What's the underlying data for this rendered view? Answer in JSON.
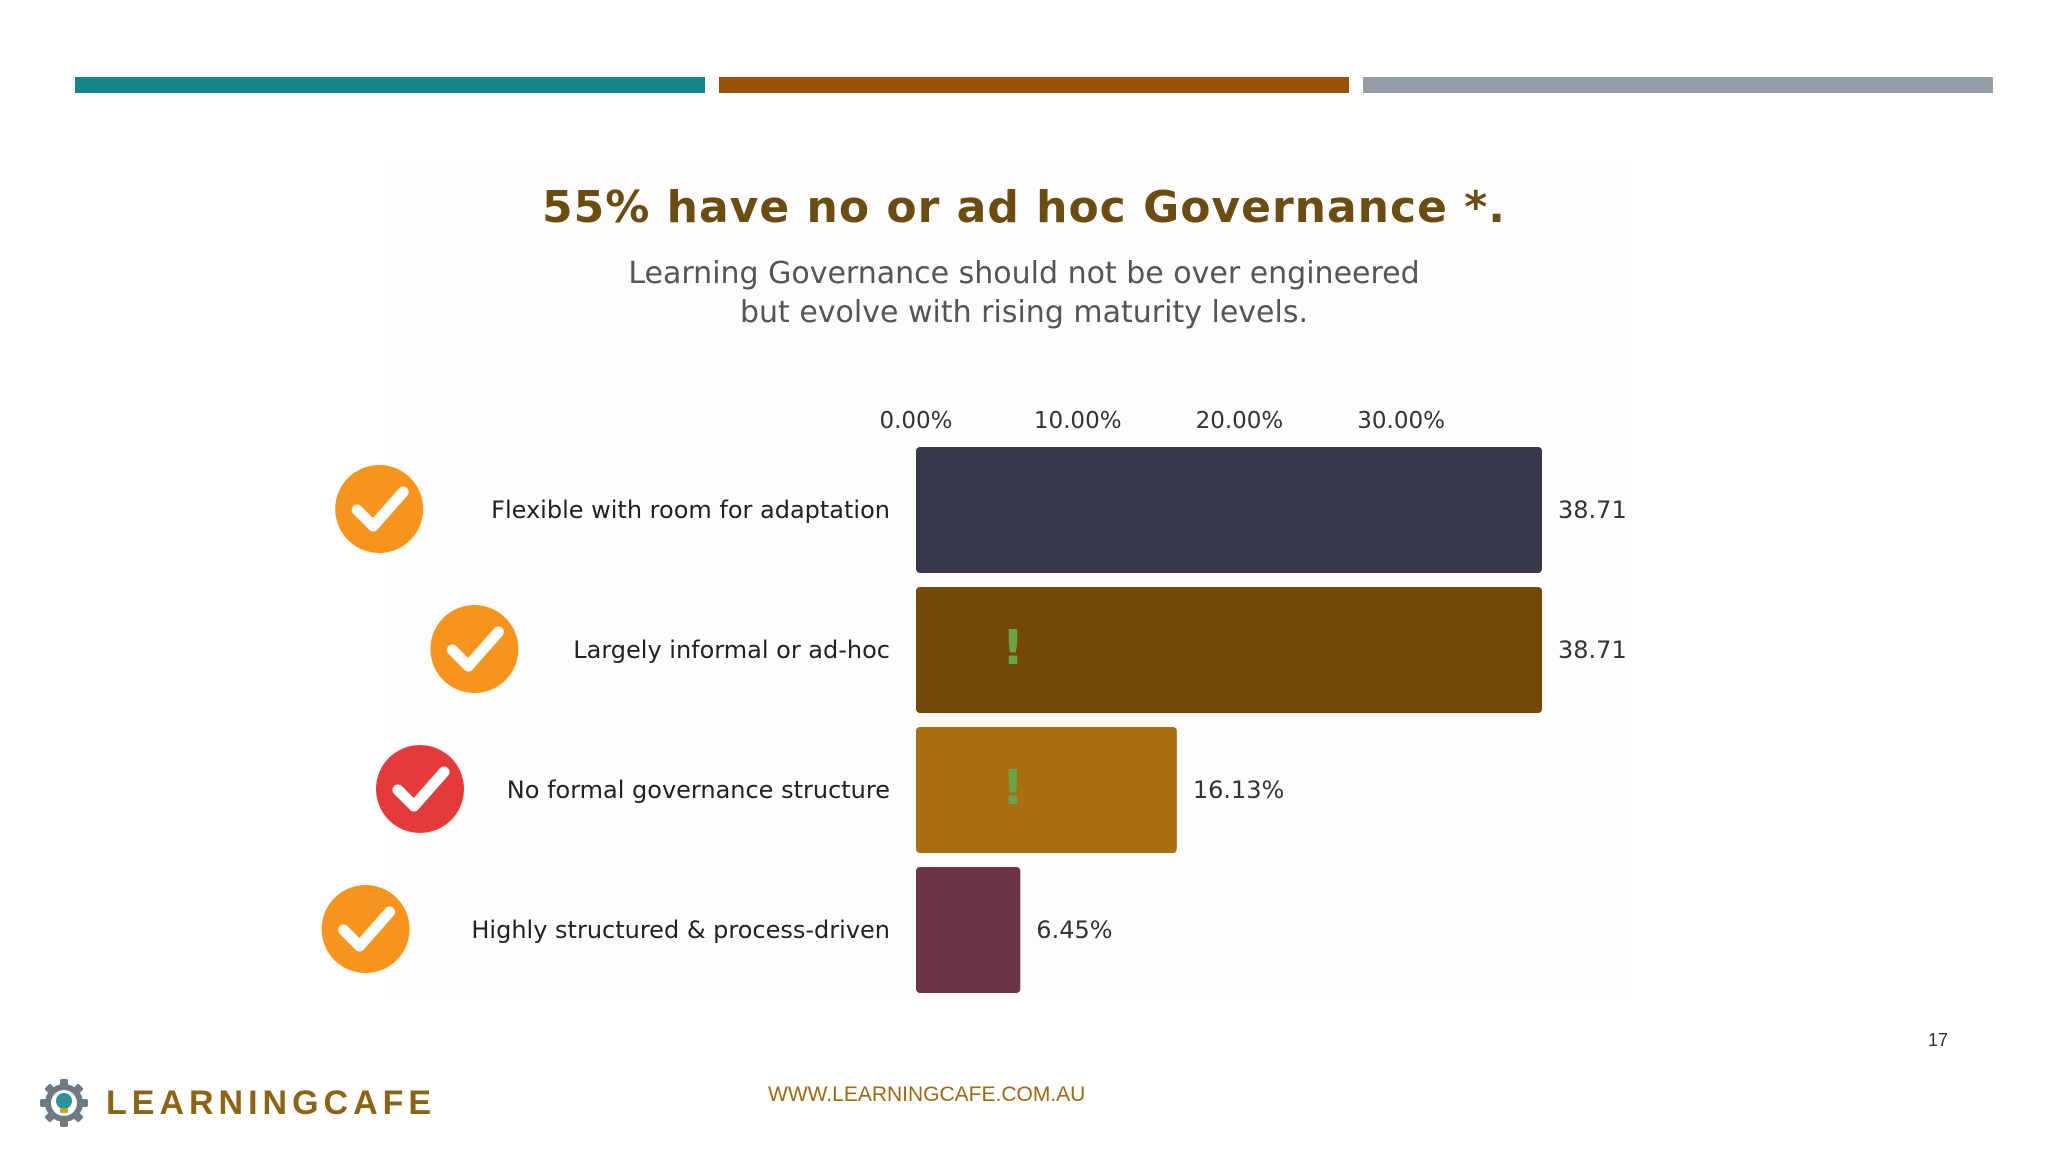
{
  "slide": {
    "page_number": "17",
    "footer_url": "WWW.LEARNINGCAFE.COM.AU",
    "logo_text": "LEARNINGCAFE",
    "logo_icon": "gear-lightbulb-icon"
  },
  "colors": {
    "top_bars": [
      "#14868a",
      "#9a5207",
      "#959ea6"
    ],
    "title": "#6b4c12",
    "check_orange": "#f7941d",
    "check_red": "#e43a3a",
    "warning_mark": "#6aa34a"
  },
  "chart_data": {
    "type": "bar",
    "orientation": "horizontal",
    "title": "55% have no or ad hoc Governance *.",
    "subtitle": [
      "Learning Governance should not be over engineered",
      "but evolve with rising maturity levels."
    ],
    "xticks": [
      "0.00%",
      "10.00%",
      "20.00%",
      "30.00%"
    ],
    "xlim": [
      0,
      38.71
    ],
    "categories": [
      "Flexible with room for adaptation",
      "Largely informal or ad-hoc",
      "No formal governance structure",
      "Highly structured & process-driven"
    ],
    "values": [
      38.71,
      38.71,
      16.13,
      6.45
    ],
    "value_labels": [
      "38.71",
      "38.71",
      "16.13%",
      "6.45%"
    ],
    "bar_colors": [
      "#38384d",
      "#744906",
      "#a86e0f",
      "#6b3248"
    ],
    "markers": [
      {
        "check": "orange",
        "warning": false
      },
      {
        "check": "orange",
        "warning": true
      },
      {
        "check": "red",
        "warning": true
      },
      {
        "check": "orange",
        "warning": false
      }
    ],
    "warning_symbol": "!"
  }
}
